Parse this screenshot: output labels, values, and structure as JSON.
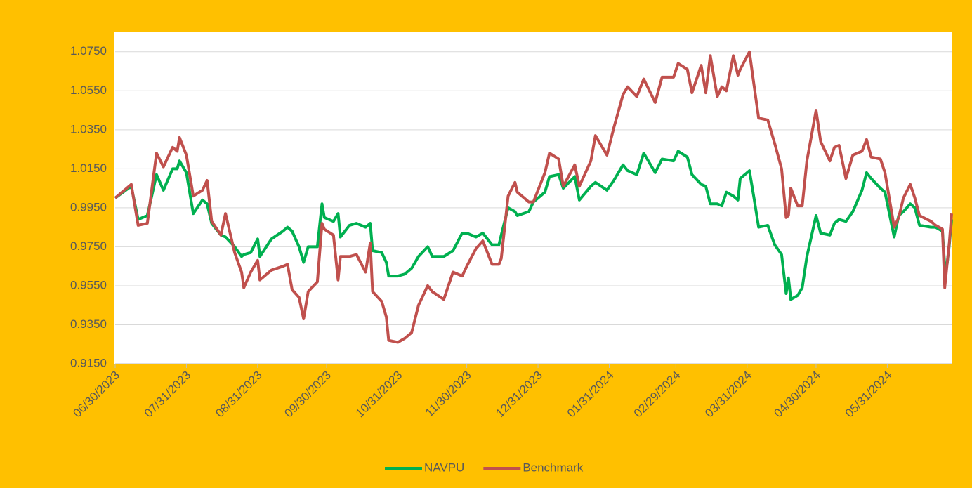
{
  "chart_data": {
    "type": "line",
    "x": [
      "2023-06-30",
      "2023-07-07",
      "2023-07-10",
      "2023-07-14",
      "2023-07-18",
      "2023-07-21",
      "2023-07-25",
      "2023-07-27",
      "2023-07-28",
      "2023-07-31",
      "2023-08-03",
      "2023-08-07",
      "2023-08-09",
      "2023-08-11",
      "2023-08-15",
      "2023-08-17",
      "2023-08-21",
      "2023-08-24",
      "2023-08-25",
      "2023-08-28",
      "2023-08-31",
      "2023-09-01",
      "2023-09-06",
      "2023-09-11",
      "2023-09-13",
      "2023-09-15",
      "2023-09-18",
      "2023-09-20",
      "2023-09-22",
      "2023-09-26",
      "2023-09-28",
      "2023-09-29",
      "2023-10-03",
      "2023-10-05",
      "2023-10-06",
      "2023-10-10",
      "2023-10-13",
      "2023-10-17",
      "2023-10-19",
      "2023-10-20",
      "2023-10-24",
      "2023-10-26",
      "2023-10-27",
      "2023-10-31",
      "2023-11-03",
      "2023-11-06",
      "2023-11-09",
      "2023-11-13",
      "2023-11-15",
      "2023-11-20",
      "2023-11-24",
      "2023-11-28",
      "2023-11-30",
      "2023-12-04",
      "2023-12-07",
      "2023-12-11",
      "2023-12-14",
      "2023-12-15",
      "2023-12-18",
      "2023-12-21",
      "2023-12-22",
      "2023-12-27",
      "2023-12-29",
      "2024-01-03",
      "2024-01-05",
      "2024-01-09",
      "2024-01-11",
      "2024-01-16",
      "2024-01-18",
      "2024-01-23",
      "2024-01-25",
      "2024-01-30",
      "2024-02-02",
      "2024-02-06",
      "2024-02-08",
      "2024-02-12",
      "2024-02-15",
      "2024-02-20",
      "2024-02-23",
      "2024-02-28",
      "2024-03-01",
      "2024-03-05",
      "2024-03-07",
      "2024-03-11",
      "2024-03-13",
      "2024-03-15",
      "2024-03-18",
      "2024-03-20",
      "2024-03-22",
      "2024-03-25",
      "2024-03-27",
      "2024-03-28",
      "2024-04-01",
      "2024-04-03",
      "2024-04-05",
      "2024-04-09",
      "2024-04-12",
      "2024-04-15",
      "2024-04-17",
      "2024-04-18",
      "2024-04-19",
      "2024-04-22",
      "2024-04-24",
      "2024-04-26",
      "2024-04-30",
      "2024-05-02",
      "2024-05-06",
      "2024-05-08",
      "2024-05-10",
      "2024-05-13",
      "2024-05-16",
      "2024-05-20",
      "2024-05-22",
      "2024-05-24",
      "2024-05-28",
      "2024-05-30",
      "2024-06-03",
      "2024-06-05",
      "2024-06-07",
      "2024-06-10",
      "2024-06-12",
      "2024-06-14",
      "2024-06-19",
      "2024-06-21",
      "2024-06-24",
      "2024-06-25",
      "2024-06-26",
      "2024-06-27",
      "2024-06-28"
    ],
    "series": [
      {
        "name": "NAVPU",
        "color": "#00B050",
        "values": [
          1.0,
          1.006,
          0.989,
          0.991,
          1.012,
          1.004,
          1.015,
          1.015,
          1.019,
          1.013,
          0.992,
          0.999,
          0.997,
          0.987,
          0.981,
          0.98,
          0.975,
          0.97,
          0.971,
          0.972,
          0.979,
          0.97,
          0.979,
          0.983,
          0.985,
          0.983,
          0.975,
          0.967,
          0.975,
          0.975,
          0.997,
          0.99,
          0.988,
          0.992,
          0.98,
          0.986,
          0.987,
          0.985,
          0.987,
          0.973,
          0.972,
          0.967,
          0.96,
          0.96,
          0.961,
          0.964,
          0.97,
          0.975,
          0.97,
          0.97,
          0.973,
          0.982,
          0.982,
          0.98,
          0.982,
          0.976,
          0.976,
          0.981,
          0.995,
          0.993,
          0.991,
          0.993,
          0.998,
          1.003,
          1.011,
          1.012,
          1.005,
          1.011,
          0.999,
          1.006,
          1.008,
          1.004,
          1.009,
          1.017,
          1.014,
          1.012,
          1.023,
          1.013,
          1.02,
          1.019,
          1.024,
          1.021,
          1.012,
          1.007,
          1.006,
          0.997,
          0.997,
          0.996,
          1.003,
          1.001,
          0.999,
          1.01,
          1.014,
          1.0,
          0.985,
          0.986,
          0.976,
          0.971,
          0.951,
          0.959,
          0.948,
          0.95,
          0.954,
          0.97,
          0.991,
          0.982,
          0.981,
          0.987,
          0.989,
          0.988,
          0.993,
          1.004,
          1.013,
          1.01,
          1.005,
          1.003,
          0.98,
          0.991,
          0.993,
          0.997,
          0.995,
          0.986,
          0.985,
          0.985,
          0.983,
          0.965,
          0.966,
          0.976,
          0.989
        ]
      },
      {
        "name": "Benchmark",
        "color": "#C0504D",
        "values": [
          1.0,
          1.007,
          0.986,
          0.987,
          1.023,
          1.016,
          1.026,
          1.024,
          1.031,
          1.022,
          1.001,
          1.004,
          1.009,
          0.988,
          0.981,
          0.992,
          0.972,
          0.962,
          0.954,
          0.962,
          0.968,
          0.958,
          0.963,
          0.965,
          0.966,
          0.953,
          0.949,
          0.938,
          0.952,
          0.957,
          0.987,
          0.984,
          0.981,
          0.958,
          0.97,
          0.97,
          0.971,
          0.962,
          0.977,
          0.952,
          0.947,
          0.939,
          0.927,
          0.926,
          0.928,
          0.931,
          0.945,
          0.955,
          0.952,
          0.948,
          0.962,
          0.96,
          0.965,
          0.974,
          0.978,
          0.966,
          0.966,
          0.969,
          1.001,
          1.008,
          1.003,
          0.998,
          0.998,
          1.013,
          1.023,
          1.02,
          1.006,
          1.017,
          1.006,
          1.019,
          1.032,
          1.022,
          1.036,
          1.053,
          1.057,
          1.052,
          1.061,
          1.049,
          1.062,
          1.062,
          1.069,
          1.066,
          1.054,
          1.068,
          1.054,
          1.073,
          1.052,
          1.057,
          1.055,
          1.073,
          1.063,
          1.066,
          1.075,
          1.058,
          1.041,
          1.04,
          1.028,
          1.015,
          0.99,
          0.991,
          1.005,
          0.996,
          0.996,
          1.019,
          1.045,
          1.029,
          1.019,
          1.026,
          1.027,
          1.01,
          1.022,
          1.024,
          1.03,
          1.021,
          1.02,
          1.013,
          0.985,
          0.99,
          1.0,
          1.007,
          1.0,
          0.991,
          0.988,
          0.986,
          0.984,
          0.954,
          0.966,
          0.977,
          0.992
        ]
      }
    ],
    "xlim": [
      "2023-06-30",
      "2024-06-28"
    ],
    "xticks": [
      {
        "value": "2023-06-30",
        "label": "06/30/2023"
      },
      {
        "value": "2023-07-31",
        "label": "07/31/2023"
      },
      {
        "value": "2023-08-31",
        "label": "08/31/2023"
      },
      {
        "value": "2023-09-30",
        "label": "09/30/2023"
      },
      {
        "value": "2023-10-31",
        "label": "10/31/2023"
      },
      {
        "value": "2023-11-30",
        "label": "11/30/2023"
      },
      {
        "value": "2023-12-31",
        "label": "12/31/2023"
      },
      {
        "value": "2024-01-31",
        "label": "01/31/2024"
      },
      {
        "value": "2024-02-29",
        "label": "02/29/2024"
      },
      {
        "value": "2024-03-31",
        "label": "03/31/2024"
      },
      {
        "value": "2024-04-30",
        "label": "04/30/2024"
      },
      {
        "value": "2024-05-31",
        "label": "05/31/2024"
      }
    ],
    "ylim": [
      0.915,
      1.085
    ],
    "yticks": [
      {
        "value": 0.915,
        "label": "0.9150"
      },
      {
        "value": 0.935,
        "label": "0.9350"
      },
      {
        "value": 0.955,
        "label": "0.9550"
      },
      {
        "value": 0.975,
        "label": "0.9750"
      },
      {
        "value": 0.995,
        "label": "0.9950"
      },
      {
        "value": 1.015,
        "label": "1.0150"
      },
      {
        "value": 1.035,
        "label": "1.0350"
      },
      {
        "value": 1.055,
        "label": "1.0550"
      },
      {
        "value": 1.075,
        "label": "1.0750"
      }
    ],
    "grid": true,
    "legend": "bottom"
  }
}
